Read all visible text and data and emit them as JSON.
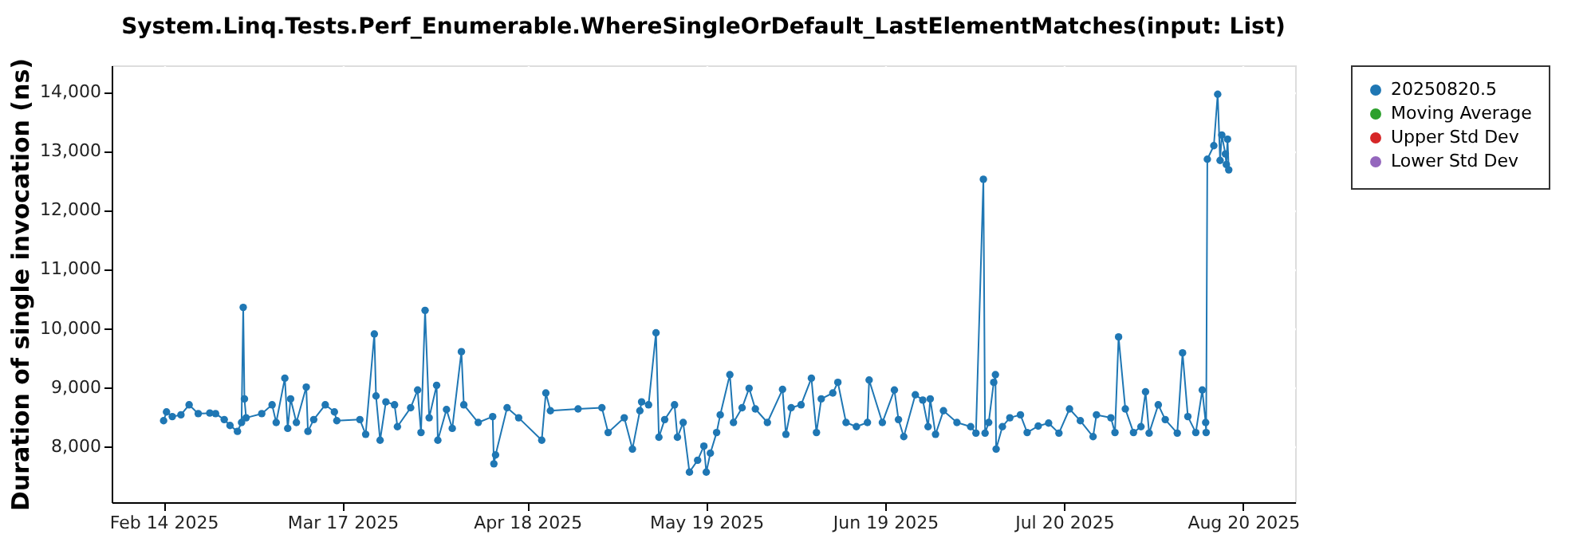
{
  "chart_data": {
    "type": "line",
    "title": "System.Linq.Tests.Perf_Enumerable.WhereSingleOrDefault_LastElementMatches(input: List)",
    "ylabel": "Duration of single invocation (ns)",
    "xlim": [
      "2025-02-05",
      "2025-08-29"
    ],
    "xticks": [
      {
        "value": "2025-02-14",
        "label": "Feb 14 2025"
      },
      {
        "value": "2025-03-17",
        "label": "Mar 17 2025"
      },
      {
        "value": "2025-04-18",
        "label": "Apr 18 2025"
      },
      {
        "value": "2025-05-19",
        "label": "May 19 2025"
      },
      {
        "value": "2025-06-19",
        "label": "Jun 19 2025"
      },
      {
        "value": "2025-07-20",
        "label": "Jul 20 2025"
      },
      {
        "value": "2025-08-20",
        "label": "Aug 20 2025"
      }
    ],
    "ylim": [
      7050,
      14450
    ],
    "yticks": [
      {
        "value": 8000,
        "label": "8,000"
      },
      {
        "value": 9000,
        "label": "9,000"
      },
      {
        "value": 10000,
        "label": "10,000"
      },
      {
        "value": 11000,
        "label": "11,000"
      },
      {
        "value": 12000,
        "label": "12,000"
      },
      {
        "value": 13000,
        "label": "13,000"
      },
      {
        "value": 14000,
        "label": "14,000"
      }
    ],
    "grid": true,
    "legend": "right",
    "marker": "circle",
    "line_style": "solid",
    "series": [
      {
        "name": "20250820.5",
        "color": "#1f77b4",
        "x": [
          "2025-02-14T00:00",
          "2025-02-14T12:00",
          "2025-02-15T12:00",
          "2025-02-17T00:00",
          "2025-02-18T10:00",
          "2025-02-20T00:00",
          "2025-02-22T00:00",
          "2025-02-23T00:00",
          "2025-02-24T12:00",
          "2025-02-25T12:00",
          "2025-02-26T19:00",
          "2025-02-27T12:00",
          "2025-02-27T19:00",
          "2025-02-28T00:00",
          "2025-02-28T07:00",
          "2025-03-03T00:00",
          "2025-03-04T19:00",
          "2025-03-05T12:00",
          "2025-03-07T00:00",
          "2025-03-07T12:00",
          "2025-03-08T00:00",
          "2025-03-09T00:00",
          "2025-03-10T17:00",
          "2025-03-11T00:00",
          "2025-03-12T00:00",
          "2025-03-14T00:00",
          "2025-03-15T14:00",
          "2025-03-16T00:00",
          "2025-03-20T00:00",
          "2025-03-21T00:00",
          "2025-03-22T12:00",
          "2025-03-22T19:00",
          "2025-03-23T12:00",
          "2025-03-24T12:00",
          "2025-03-26T00:00",
          "2025-03-26T12:00",
          "2025-03-28T19:00",
          "2025-03-30T00:00",
          "2025-03-30T14:00",
          "2025-03-31T07:00",
          "2025-04-01T00:00",
          "2025-04-02T07:00",
          "2025-04-02T12:00",
          "2025-04-04T00:00",
          "2025-04-05T00:00",
          "2025-04-06T14:00",
          "2025-04-07T00:00",
          "2025-04-09T12:00",
          "2025-04-12T00:00",
          "2025-04-12T05:00",
          "2025-04-12T12:00",
          "2025-04-14T12:00",
          "2025-04-16T12:00",
          "2025-04-20T12:00",
          "2025-04-21T05:00",
          "2025-04-22T00:00",
          "2025-04-26T19:00",
          "2025-04-30T22:00",
          "2025-05-02T00:00",
          "2025-05-04T19:00",
          "2025-05-06T05:00",
          "2025-05-07T12:00",
          "2025-05-07T19:00",
          "2025-05-09T00:00",
          "2025-05-10T07:00",
          "2025-05-10T19:00",
          "2025-05-11T19:00",
          "2025-05-13T12:00",
          "2025-05-14T00:00",
          "2025-05-15T00:00",
          "2025-05-16T02:00",
          "2025-05-17T12:00",
          "2025-05-18T14:00",
          "2025-05-19T00:00",
          "2025-05-19T17:00",
          "2025-05-20T19:00",
          "2025-05-21T10:00",
          "2025-05-23T02:00",
          "2025-05-23T17:00",
          "2025-05-25T05:00",
          "2025-05-26T10:00",
          "2025-05-27T12:00",
          "2025-05-29T14:00",
          "2025-06-01T05:00",
          "2025-06-01T19:00",
          "2025-06-02T17:00",
          "2025-06-04T10:00",
          "2025-06-06T05:00",
          "2025-06-07T02:00",
          "2025-06-07T22:00",
          "2025-06-09T22:00",
          "2025-06-10T19:00",
          "2025-06-12T05:00",
          "2025-06-14T00:00",
          "2025-06-15T22:00",
          "2025-06-16T05:00",
          "2025-06-18T12:00",
          "2025-06-20T14:00",
          "2025-06-21T07:00",
          "2025-06-22T05:00",
          "2025-06-24T05:00",
          "2025-06-25T12:00",
          "2025-06-26T10:00",
          "2025-06-26T19:00",
          "2025-06-27T17:00",
          "2025-06-29T02:00",
          "2025-07-01T10:00",
          "2025-07-03T19:00",
          "2025-07-04T17:00",
          "2025-07-06T00:00",
          "2025-07-06T07:00",
          "2025-07-06T22:00",
          "2025-07-07T19:00",
          "2025-07-08T02:00",
          "2025-07-08T05:00",
          "2025-07-09T07:00",
          "2025-07-10T14:00",
          "2025-07-12T10:00",
          "2025-07-13T14:00",
          "2025-07-15T12:00",
          "2025-07-17T07:00",
          "2025-07-19T02:00",
          "2025-07-20T22:00",
          "2025-07-22T19:00",
          "2025-07-25T00:00",
          "2025-07-25T14:00",
          "2025-07-28T02:00",
          "2025-07-28T19:00",
          "2025-07-29T10:00",
          "2025-07-30T14:00",
          "2025-08-01T00:00",
          "2025-08-02T07:00",
          "2025-08-03T02:00",
          "2025-08-03T17:00",
          "2025-08-05T07:00",
          "2025-08-06T12:00",
          "2025-08-08T14:00",
          "2025-08-09T12:00",
          "2025-08-10T10:00",
          "2025-08-11T19:00",
          "2025-08-12T22:00",
          "2025-08-13T12:00",
          "2025-08-13T14:00",
          "2025-08-13T19:00",
          "2025-08-14T22:00",
          "2025-08-15T14:00",
          "2025-08-16T00:00",
          "2025-08-16T07:00",
          "2025-08-16T22:00",
          "2025-08-17T02:00",
          "2025-08-17T07:00",
          "2025-08-17T12:00"
        ],
        "values": [
          8430,
          8580,
          8500,
          8530,
          8700,
          8550,
          8560,
          8550,
          8450,
          8350,
          8250,
          8400,
          10350,
          8800,
          8480,
          8550,
          8700,
          8400,
          9150,
          8300,
          8800,
          8400,
          9000,
          8250,
          8450,
          8700,
          8580,
          8430,
          8450,
          8200,
          9900,
          8850,
          8100,
          8750,
          8700,
          8330,
          8650,
          8950,
          8230,
          10300,
          8480,
          9030,
          8100,
          8620,
          8300,
          9600,
          8700,
          8400,
          8500,
          7700,
          7850,
          8650,
          8480,
          8100,
          8900,
          8600,
          8630,
          8650,
          8230,
          8480,
          7950,
          8600,
          8750,
          8700,
          9920,
          8150,
          8450,
          8700,
          8150,
          8400,
          7560,
          7760,
          8000,
          7560,
          7880,
          8230,
          8530,
          9210,
          8400,
          8650,
          8980,
          8630,
          8400,
          8960,
          8200,
          8650,
          8700,
          9150,
          8230,
          8800,
          8900,
          9080,
          8400,
          8330,
          8400,
          9120,
          8400,
          8950,
          8450,
          8160,
          8870,
          8780,
          8330,
          8800,
          8200,
          8600,
          8400,
          8330,
          8220,
          12520,
          8220,
          8400,
          9080,
          9210,
          7950,
          8330,
          8480,
          8530,
          8230,
          8340,
          8390,
          8220,
          8630,
          8430,
          8160,
          8530,
          8480,
          8230,
          9850,
          8630,
          8230,
          8330,
          8920,
          8220,
          8700,
          8450,
          8220,
          9580,
          8500,
          8230,
          8950,
          8400,
          8230,
          12860,
          13090,
          13960,
          12840,
          13270,
          12950,
          12770,
          13200,
          12680
        ]
      },
      {
        "name": "Moving Average",
        "color": "#2ca02c"
      },
      {
        "name": "Upper Std Dev",
        "color": "#d62728"
      },
      {
        "name": "Lower Std Dev",
        "color": "#9467bd"
      }
    ]
  }
}
